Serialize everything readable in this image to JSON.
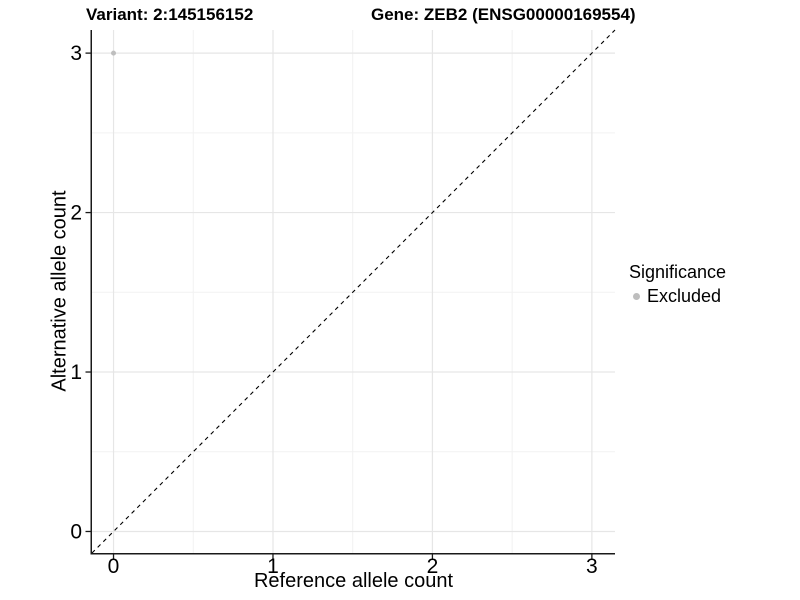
{
  "titles": {
    "variant": "Variant: 2:145156152",
    "gene": "Gene: ZEB2 (ENSG00000169554)"
  },
  "chart_data": {
    "type": "scatter",
    "xlabel": "Reference allele count",
    "ylabel": "Alternative allele count",
    "xlim": [
      -0.135,
      3.145
    ],
    "ylim": [
      -0.135,
      3.145
    ],
    "xticks": [
      0,
      1,
      2,
      3
    ],
    "yticks": [
      0,
      1,
      2,
      3
    ],
    "minor_ticks": [
      0.5,
      1.5,
      2.5
    ],
    "grid": "major and minor, light grey on white",
    "points": [
      {
        "x": 0,
        "y": 3,
        "series": "Excluded",
        "color": "#bebebe",
        "radius": 2.5
      }
    ],
    "abline": {
      "slope": 1,
      "intercept": 0,
      "style": "dashed",
      "color": "#000000"
    },
    "legend": {
      "title": "Significance",
      "position": "right",
      "items": [
        {
          "label": "Excluded",
          "color": "#bebebe"
        }
      ]
    }
  },
  "colors": {
    "background": "#ffffff",
    "grid_major": "#e6e6e6",
    "grid_minor": "#f2f2f2",
    "axis_line": "#1a1a1a",
    "tick_text": "#000000",
    "point": "#bebebe"
  }
}
